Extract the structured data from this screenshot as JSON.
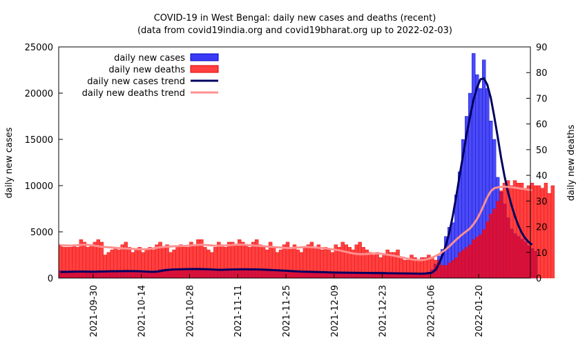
{
  "chart_data": {
    "type": "bar",
    "title": "COVID-19 in West Bengal: daily new cases and deaths (recent)",
    "subtitle": "(data from covid19india.org and covid19bharat.org up to 2022-02-03)",
    "ylabel": "daily new cases",
    "y2label": "daily new deaths",
    "ylim": [
      0,
      25000
    ],
    "y2lim": [
      0,
      90
    ],
    "yticks": [
      0,
      5000,
      10000,
      15000,
      20000,
      25000
    ],
    "y2ticks": [
      0,
      10,
      20,
      30,
      40,
      50,
      60,
      70,
      80,
      90
    ],
    "xticks": [
      "2021-09-30",
      "2021-10-14",
      "2021-10-28",
      "2021-11-11",
      "2021-11-25",
      "2021-12-09",
      "2021-12-23",
      "2022-01-06",
      "2022-01-20"
    ],
    "x_start": "2021-09-20",
    "x_end": "2022-02-03",
    "legend_position": "top-left",
    "series": [
      {
        "name": "daily new cases",
        "kind": "bar",
        "axis": "y",
        "color": "#3b3bf6",
        "values": [
          792,
          780,
          760,
          782,
          798,
          760,
          755,
          780,
          792,
          791,
          760,
          790,
          730,
          785,
          790,
          820,
          760,
          740,
          800,
          820,
          800,
          810,
          750,
          700,
          680,
          700,
          720,
          750,
          790,
          900,
          950,
          980,
          990,
          1000,
          1000,
          1010,
          1000,
          990,
          995,
          1000,
          1000,
          1010,
          1000,
          980,
          950,
          920,
          900,
          880,
          860,
          880,
          900,
          930,
          960,
          980,
          1000,
          1000,
          990,
          980,
          970,
          960,
          950,
          940,
          930,
          900,
          880,
          860,
          820,
          800,
          790,
          780,
          770,
          760,
          740,
          720,
          700,
          690,
          680,
          670,
          660,
          650,
          640,
          630,
          620,
          610,
          600,
          600,
          600,
          600,
          610,
          620,
          630,
          640,
          650,
          660,
          640,
          620,
          600,
          590,
          580,
          560,
          550,
          540,
          530,
          520,
          520,
          540,
          560,
          650,
          900,
          1500,
          2400,
          3100,
          4500,
          5500,
          6000,
          9000,
          11500,
          15000,
          17500,
          20000,
          24300,
          22000,
          20500,
          23600,
          20500,
          17000,
          15000,
          10900,
          9300,
          8000,
          6500,
          5300,
          4800,
          4500,
          4200,
          3900,
          3500,
          3200,
          2900
        ]
      },
      {
        "name": "daily new deaths",
        "kind": "bar",
        "axis": "y2",
        "color": "#ff4040",
        "values": [
          13,
          12,
          12,
          12,
          13,
          12,
          15,
          14,
          12,
          13,
          14,
          15,
          14,
          9,
          10,
          11,
          12,
          11,
          13,
          14,
          12,
          10,
          11,
          12,
          10,
          11,
          12,
          11,
          13,
          14,
          12,
          13,
          10,
          11,
          12,
          13,
          12,
          12,
          14,
          13,
          15,
          15,
          12,
          11,
          10,
          12,
          14,
          13,
          12,
          14,
          14,
          13,
          15,
          14,
          13,
          12,
          14,
          15,
          13,
          12,
          11,
          14,
          12,
          10,
          11,
          13,
          14,
          12,
          13,
          11,
          10,
          12,
          13,
          14,
          12,
          13,
          11,
          12,
          11,
          10,
          13,
          12,
          14,
          13,
          12,
          11,
          13,
          14,
          12,
          11,
          10,
          9,
          10,
          8,
          9,
          11,
          10,
          10,
          11,
          8,
          7,
          7,
          9,
          8,
          7,
          8,
          8,
          9,
          8,
          7,
          7,
          5,
          5,
          6,
          7,
          8,
          10,
          11,
          12,
          13,
          15,
          16,
          17,
          19,
          22,
          25,
          27,
          30,
          34,
          37,
          38,
          36,
          38,
          37,
          37,
          35,
          36,
          37,
          36,
          36,
          35,
          37,
          33,
          36
        ]
      },
      {
        "name": "daily new cases trend",
        "kind": "line",
        "axis": "y",
        "color": "#000060",
        "values": [
          650,
          660,
          670,
          680,
          690,
          700,
          705,
          700,
          690,
          680,
          690,
          700,
          710,
          720,
          730,
          740,
          740,
          745,
          750,
          760,
          760,
          755,
          750,
          740,
          720,
          700,
          680,
          680,
          700,
          750,
          820,
          880,
          910,
          930,
          940,
          950,
          960,
          970,
          975,
          980,
          980,
          970,
          960,
          950,
          930,
          910,
          900,
          900,
          910,
          920,
          930,
          940,
          945,
          950,
          950,
          945,
          940,
          930,
          920,
          910,
          900,
          880,
          860,
          840,
          820,
          800,
          780,
          760,
          740,
          720,
          700,
          690,
          680,
          670,
          660,
          650,
          640,
          630,
          620,
          610,
          600,
          595,
          590,
          585,
          580,
          575,
          570,
          565,
          560,
          555,
          550,
          545,
          540,
          535,
          530,
          525,
          520,
          515,
          510,
          505,
          500,
          495,
          490,
          485,
          480,
          480,
          490,
          520,
          600,
          900,
          1600,
          2500,
          3600,
          5000,
          6800,
          8900,
          11200,
          13400,
          15600,
          17500,
          19300,
          20600,
          21500,
          21600,
          20900,
          19500,
          17500,
          15300,
          13000,
          11000,
          9300,
          7900,
          6700,
          5700,
          4900,
          4300,
          3900,
          3600
        ]
      },
      {
        "name": "daily new deaths trend",
        "kind": "line",
        "axis": "y2",
        "color": "#ff9090",
        "values": [
          12.8,
          12.7,
          12.7,
          12.6,
          12.7,
          12.8,
          12.9,
          13.0,
          12.9,
          12.8,
          12.6,
          12.4,
          12.2,
          12.1,
          12.0,
          11.9,
          11.8,
          11.7,
          11.6,
          11.5,
          11.5,
          11.4,
          11.3,
          11.2,
          11.2,
          11.3,
          11.4,
          11.6,
          11.8,
          12.0,
          12.1,
          12.2,
          12.3,
          12.4,
          12.4,
          12.5,
          12.5,
          12.6,
          12.7,
          12.8,
          12.9,
          13.0,
          12.9,
          12.8,
          12.7,
          12.6,
          12.6,
          12.6,
          12.7,
          12.8,
          12.9,
          13.0,
          13.0,
          13.0,
          12.9,
          12.8,
          12.7,
          12.6,
          12.5,
          12.4,
          12.3,
          12.2,
          12.1,
          12.0,
          11.9,
          11.8,
          11.7,
          11.7,
          11.8,
          11.9,
          12.0,
          12.1,
          12.1,
          12.0,
          11.9,
          11.8,
          11.7,
          11.6,
          11.4,
          11.2,
          11.0,
          10.8,
          10.5,
          10.2,
          9.9,
          9.6,
          9.4,
          9.3,
          9.3,
          9.4,
          9.5,
          9.6,
          9.6,
          9.5,
          9.3,
          9.1,
          8.9,
          8.7,
          8.4,
          8.1,
          7.8,
          7.5,
          7.3,
          7.1,
          7.0,
          7.0,
          7.2,
          7.5,
          8.0,
          8.6,
          9.3,
          10.2,
          11.2,
          12.4,
          13.7,
          15.0,
          16.2,
          17.3,
          18.3,
          19.4,
          21.0,
          23.0,
          25.5,
          28.5,
          31.5,
          33.8,
          35.0,
          35.3,
          35.5,
          35.6,
          35.5,
          35.4,
          35.2,
          35.0,
          34.8,
          34.6,
          34.4,
          34.2
        ]
      }
    ]
  }
}
